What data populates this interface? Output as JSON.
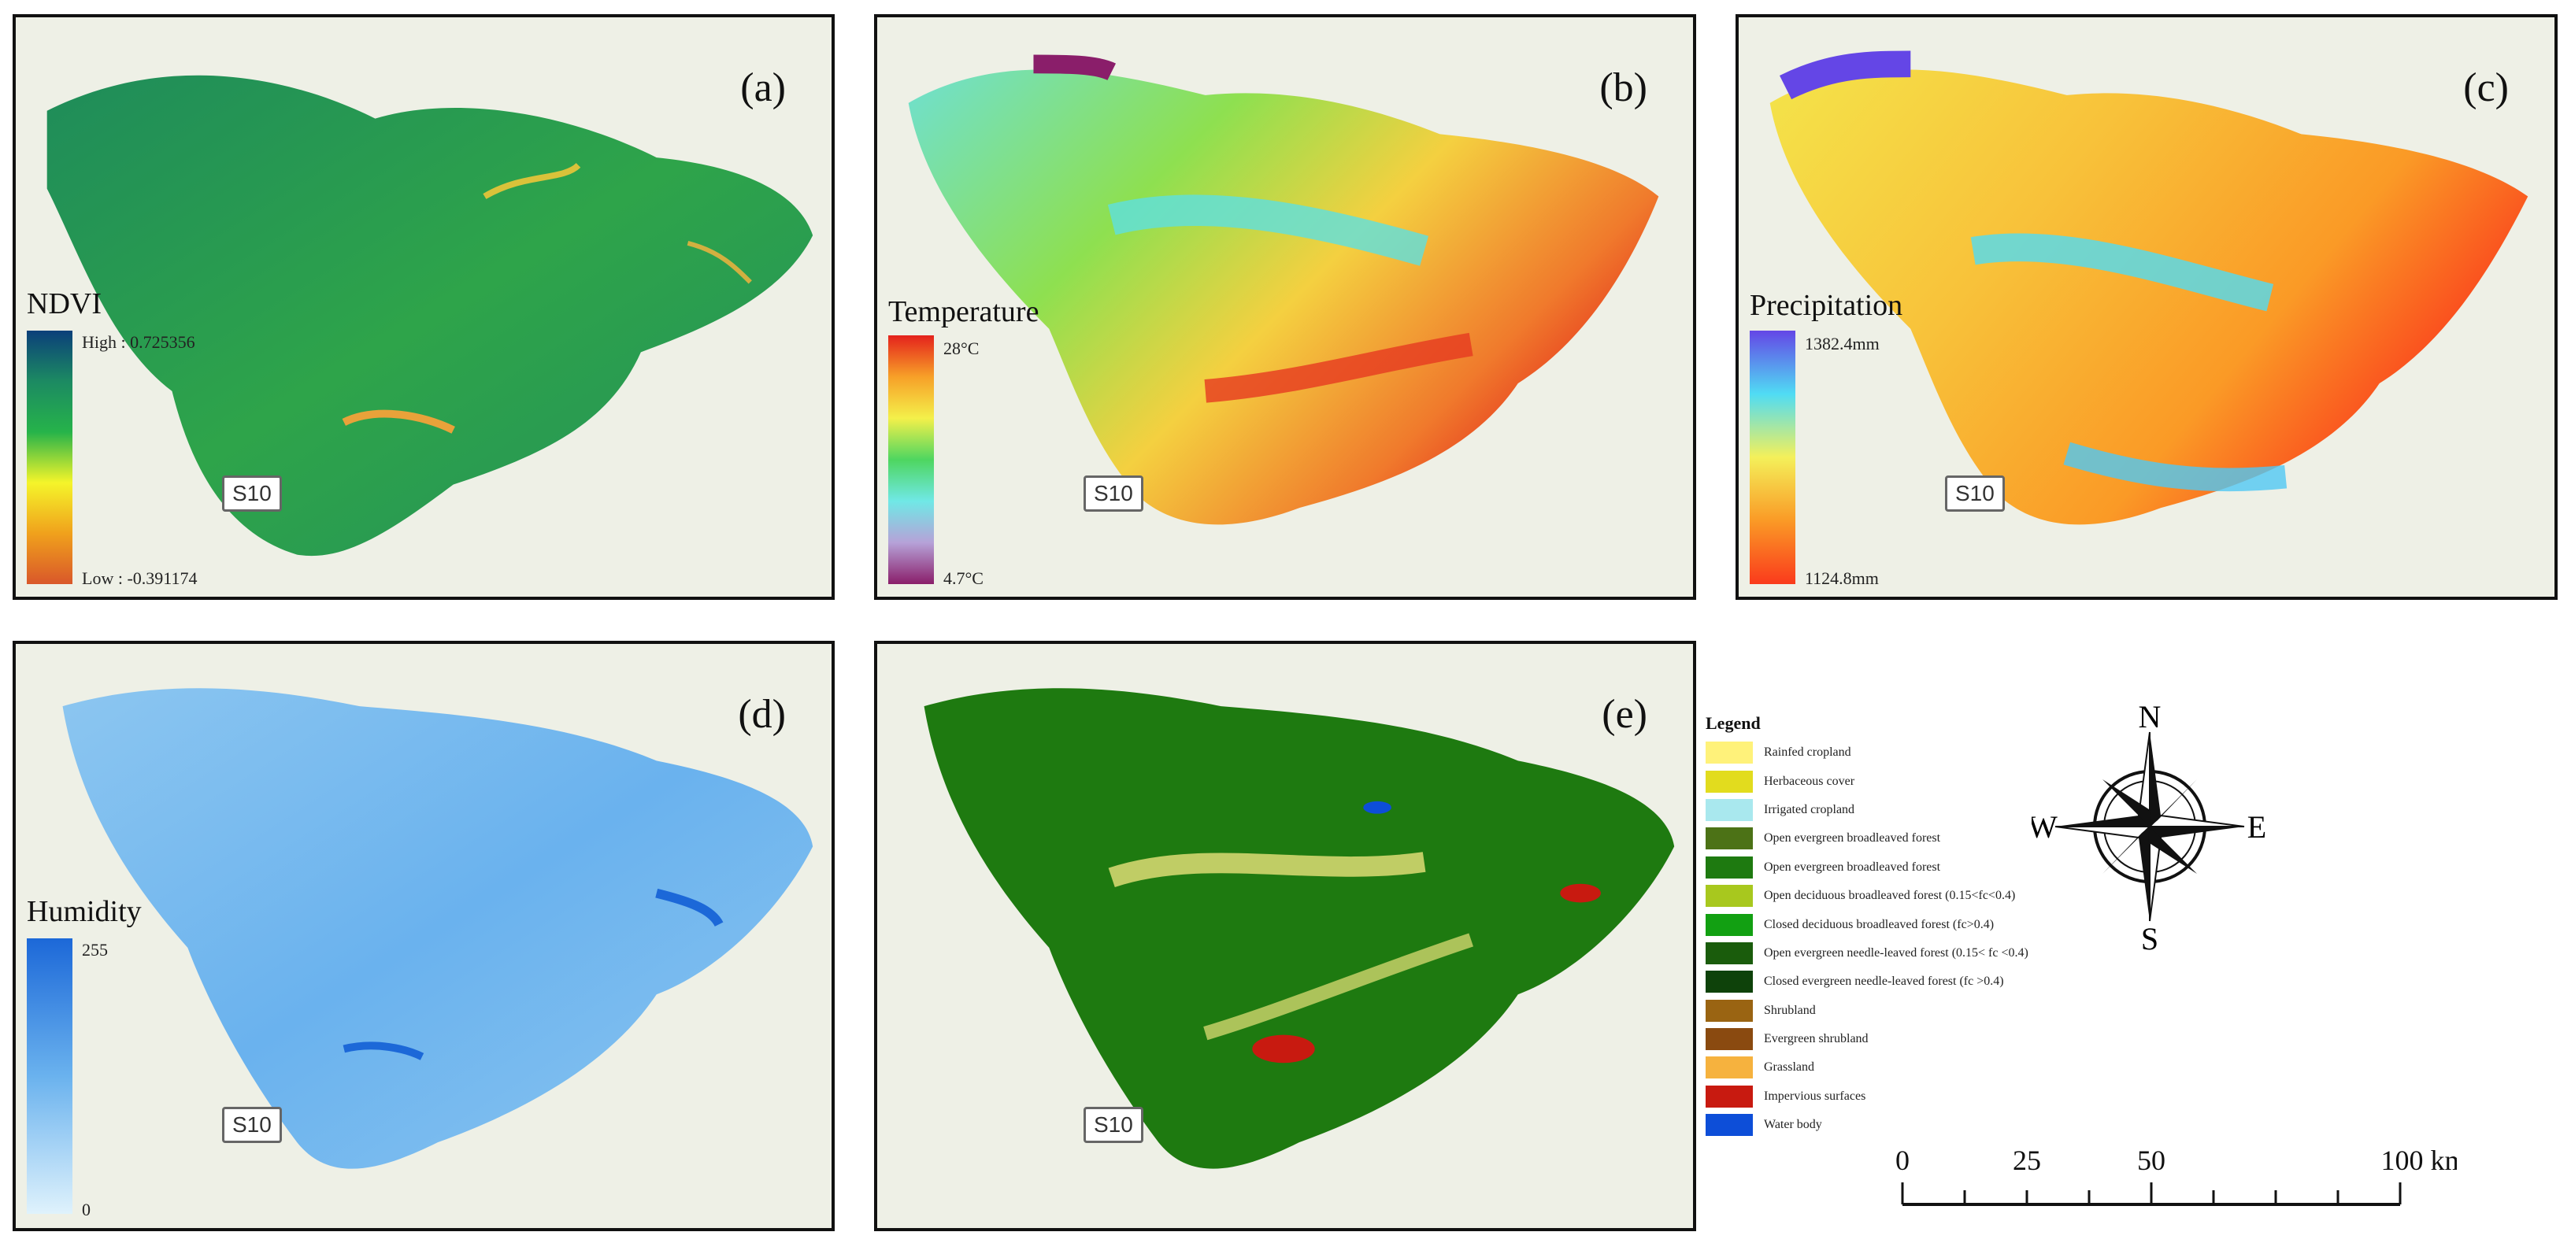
{
  "panels": [
    {
      "id": "a",
      "label": "(a)",
      "legend_title": "NDVI",
      "high": "High : 0.725356",
      "low": "Low : -0.391174"
    },
    {
      "id": "b",
      "label": "(b)",
      "legend_title": "Temperature",
      "high": "28°C",
      "low": "4.7°C"
    },
    {
      "id": "c",
      "label": "(c)",
      "legend_title": "Precipitation",
      "high": "1382.4mm",
      "low": "1124.8mm"
    },
    {
      "id": "d",
      "label": "(d)",
      "legend_title": "Humidity",
      "high": "255",
      "low": "0"
    },
    {
      "id": "e",
      "label": "(e)"
    }
  ],
  "road_label": "S10",
  "landcover_legend": {
    "title": "Legend",
    "items": [
      {
        "label": "Rainfed cropland",
        "color": "#fff27a"
      },
      {
        "label": "Herbaceous cover",
        "color": "#e2dc1e"
      },
      {
        "label": "Irrigated cropland",
        "color": "#a9e8ee"
      },
      {
        "label": "Open evergreen broadleaved forest",
        "color": "#4c7216"
      },
      {
        "label": "Open evergreen broadleaved forest",
        "color": "#1e7a10"
      },
      {
        "label": "Open deciduous broadleaved forest (0.15<fc<0.4)",
        "color": "#a8c81e"
      },
      {
        "label": "Closed deciduous broadleaved forest (fc>0.4)",
        "color": "#12a012"
      },
      {
        "label": "Open evergreen needle-leaved forest (0.15< fc <0.4)",
        "color": "#1a5c0c"
      },
      {
        "label": "Closed evergreen needle-leaved forest (fc >0.4)",
        "color": "#0e420a"
      },
      {
        "label": "Shrubland",
        "color": "#9a6412"
      },
      {
        "label": "Evergreen shrubland",
        "color": "#8a4a10"
      },
      {
        "label": "Grassland",
        "color": "#f6b23e"
      },
      {
        "label": "Impervious surfaces",
        "color": "#c81a10"
      },
      {
        "label": "Water body",
        "color": "#0d4ed8"
      }
    ]
  },
  "compass": {
    "n": "N",
    "s": "S",
    "e": "E",
    "w": "W"
  },
  "scale": {
    "ticks": [
      "0",
      "25",
      "50",
      "100 km"
    ]
  },
  "colors": {
    "ndvi_ramp": [
      "#0b3f7a",
      "#1c8a62",
      "#26b34a",
      "#f5f52a",
      "#f0a11c",
      "#d9572a"
    ],
    "temp_ramp": [
      "#e4221c",
      "#f7a028",
      "#f4f04a",
      "#4ed660",
      "#70e8e6",
      "#b6a2d8",
      "#8a1e6a"
    ],
    "precip_ramp": [
      "#6446e6",
      "#50dcf4",
      "#f4f05a",
      "#fa9a26",
      "#fa3a1c"
    ],
    "hum_ramp": [
      "#1c68d8",
      "#6ab2ee",
      "#dff2fc"
    ]
  }
}
